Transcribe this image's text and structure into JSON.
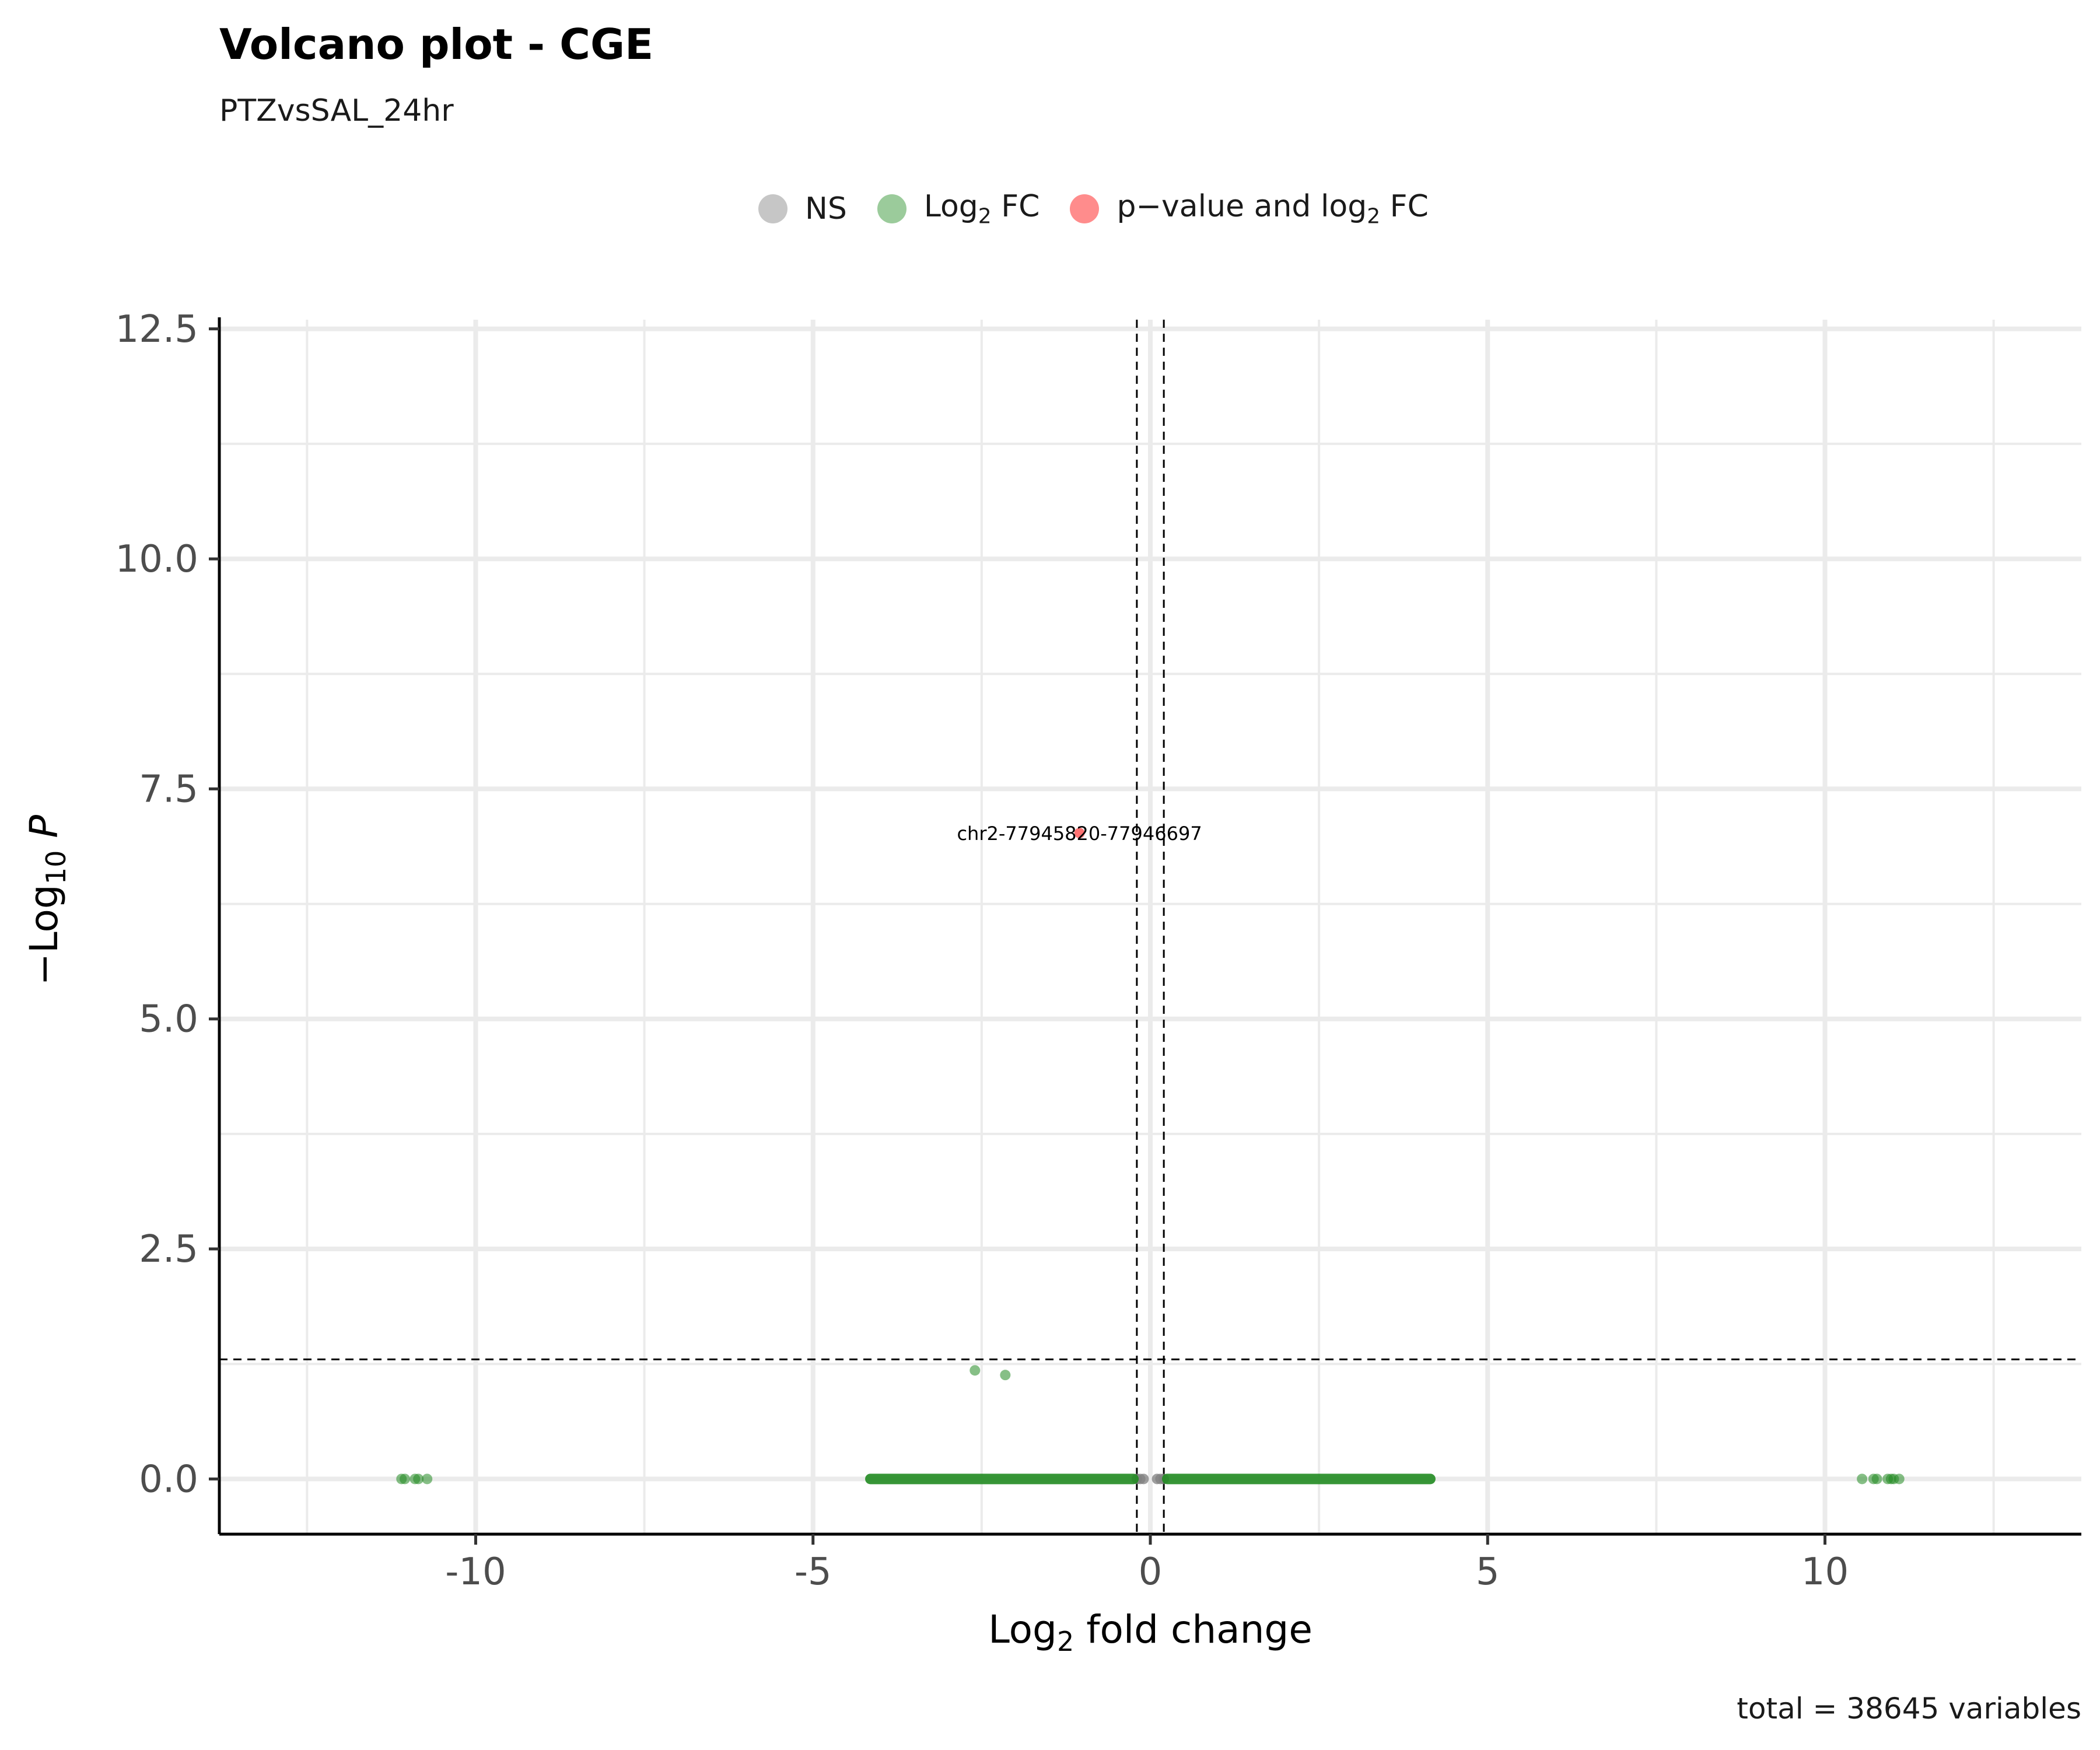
{
  "title": "Volcano plot - CGE",
  "subtitle": "PTZvsSAL_24hr",
  "caption": "total = 38645 variables",
  "legend": {
    "placement": "top",
    "items": [
      {
        "label": "NS",
        "sub": "",
        "suffix": "",
        "color": "#808080"
      },
      {
        "label": "Log",
        "sub": "2",
        "suffix": " FC",
        "color": "#228B22"
      },
      {
        "label": "p−value and log",
        "sub": "2",
        "suffix": " FC",
        "color": "#FF0000"
      }
    ]
  },
  "axes": {
    "x": {
      "label_main": "Log",
      "label_sub": "2",
      "label_rest": " fold change",
      "range": [
        -13.8,
        13.8
      ],
      "ticks": [
        -10,
        -5,
        0,
        5,
        10
      ],
      "tick_labels": [
        "-10",
        "-5",
        "0",
        "5",
        "10"
      ],
      "minor": [
        -12.5,
        -7.5,
        -2.5,
        2.5,
        7.5,
        12.5
      ]
    },
    "y": {
      "label_prefix": "−Log",
      "label_sub": "10",
      "label_var": "P",
      "range": [
        -0.6,
        12.6
      ],
      "ticks": [
        0,
        2.5,
        5,
        7.5,
        10,
        12.5
      ],
      "tick_labels": [
        "0.0",
        "2.5",
        "5.0",
        "7.5",
        "10.0",
        "12.5"
      ],
      "minor": [
        1.25,
        3.75,
        6.25,
        8.75,
        11.25
      ]
    }
  },
  "chart_data": {
    "type": "scatter",
    "title": "Volcano plot - CGE",
    "subtitle": "PTZvsSAL_24hr",
    "xlabel": "Log2 fold change",
    "ylabel": "-Log10 P",
    "xlim": [
      -13.8,
      13.8
    ],
    "ylim": [
      -0.6,
      12.6
    ],
    "grid": true,
    "legend_placement": "top",
    "cutoffs": {
      "log2fc": [
        -0.2,
        0.2
      ],
      "neg_log10_p": 1.3
    },
    "series": [
      {
        "name": "NS",
        "color": "#808080",
        "points": [
          [
            -0.2,
            0
          ],
          [
            -0.15,
            0
          ],
          [
            -0.1,
            0
          ],
          [
            0.1,
            0
          ],
          [
            0.15,
            0
          ],
          [
            0.2,
            0
          ]
        ]
      },
      {
        "name": "Log2 FC",
        "color": "#228B22",
        "points": [
          [
            -11.1,
            0
          ],
          [
            -11.05,
            0
          ],
          [
            -10.9,
            0
          ],
          [
            -10.85,
            0
          ],
          [
            -10.72,
            0
          ],
          [
            -2.6,
            1.18
          ],
          [
            -2.15,
            1.13
          ],
          [
            10.55,
            0
          ],
          [
            10.72,
            0
          ],
          [
            10.77,
            0
          ],
          [
            10.93,
            0
          ],
          [
            10.98,
            0
          ],
          [
            11.02,
            0
          ],
          [
            11.1,
            0
          ]
        ],
        "bands": [
          {
            "from": -4.15,
            "to": -0.25,
            "y": 0
          },
          {
            "from": 0.25,
            "to": 4.15,
            "y": 0
          }
        ]
      },
      {
        "name": "p−value and log2 FC",
        "color": "#FF0000",
        "points": [
          [
            -1.05,
            7.02
          ]
        ]
      }
    ],
    "annotations": [
      {
        "text": "chr2-77945820-77946697",
        "x": -1.05,
        "y": 7.02
      }
    ]
  }
}
